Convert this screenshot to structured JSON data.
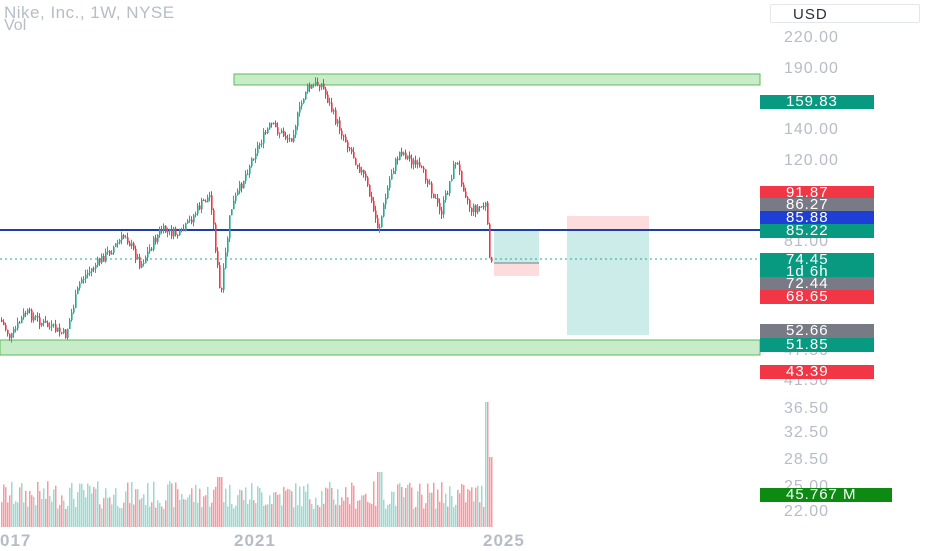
{
  "header": {
    "title": "Nike, Inc., 1W, NYSE",
    "vol_label": "Vol"
  },
  "currency": "USD",
  "price_axis": {
    "ticks": [
      "220.00",
      "190.00",
      "140.00",
      "120.00",
      "81.00",
      "47.50",
      "41.50"
    ]
  },
  "volume_axis": {
    "ticks": [
      "36.50",
      "32.50",
      "28.50",
      "25.00",
      "22.00"
    ]
  },
  "badges": {
    "last_price": {
      "text": "159.83",
      "color": "#089981"
    },
    "b1": {
      "text": "91.87",
      "color": "#f23645"
    },
    "b2": {
      "text": "86.27",
      "color": "#787b86"
    },
    "b3": {
      "text": "85.88",
      "color": "#1e3fd6"
    },
    "b4": {
      "text": "85.22",
      "color": "#089981"
    },
    "b5": {
      "text": "74.45",
      "color": "#089981"
    },
    "b6": {
      "text": "1d 6h",
      "color": "#089981"
    },
    "b7": {
      "text": "72.44",
      "color": "#787b86"
    },
    "b8": {
      "text": "68.65",
      "color": "#f23645"
    },
    "b9": {
      "text": "52.66",
      "color": "#787b86"
    },
    "b10": {
      "text": "51.85",
      "color": "#089981"
    },
    "b11": {
      "text": "43.39",
      "color": "#f23645"
    },
    "vol_value": {
      "text": "45.767 M",
      "color": "#0c8a12"
    }
  },
  "time_axis": {
    "labels": [
      "017",
      "2021",
      "2025"
    ]
  },
  "colors": {
    "up": "#22ab94",
    "down": "#f23645",
    "line": "#1e3fa8",
    "zone": "#c8ecc8",
    "target": "#b7e4e0",
    "stop": "#fbd3d5"
  }
}
